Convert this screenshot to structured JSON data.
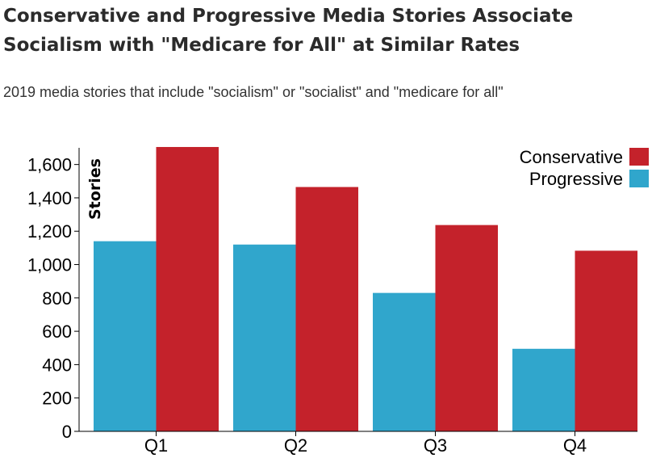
{
  "title": "Conservative and Progressive Media Stories Associate Socialism with \"Medicare for All\" at Similar Rates",
  "subtitle": "2019 media stories that include \"socialism\" or \"socialist\" and \"medicare for all\"",
  "chart_data": {
    "type": "bar",
    "categories": [
      "Q1",
      "Q2",
      "Q3",
      "Q4"
    ],
    "series": [
      {
        "name": "Progressive",
        "color": "#30a6cc",
        "values": [
          1140,
          1120,
          830,
          495
        ]
      },
      {
        "name": "Conservative",
        "color": "#c4222b",
        "values": [
          1705,
          1465,
          1237,
          1083
        ]
      }
    ],
    "ylabel": "Stories",
    "ylim": [
      0,
      1700
    ],
    "yticks": [
      0,
      200,
      400,
      600,
      800,
      1000,
      1200,
      1400,
      1600
    ],
    "ytick_labels": [
      "0",
      "200",
      "400",
      "600",
      "800",
      "1,000",
      "1,200",
      "1,400",
      "1,600"
    ],
    "legend": {
      "position": "top-right",
      "entries": [
        {
          "label": "Conservative",
          "color": "#c4222b"
        },
        {
          "label": "Progressive",
          "color": "#30a6cc"
        }
      ]
    },
    "grid": false
  }
}
